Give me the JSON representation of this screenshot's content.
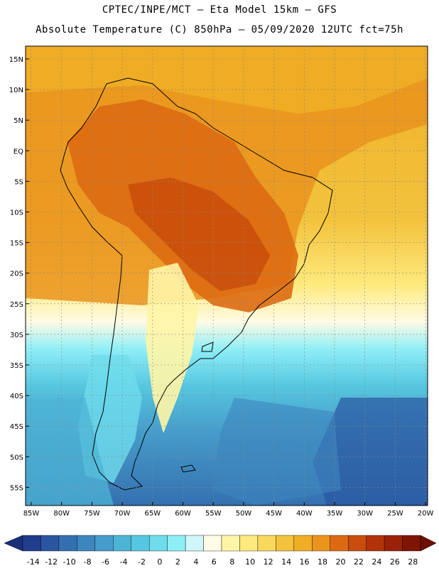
{
  "header": {
    "line1": "CPTEC/INPE/MCT –  Eta Model 15km – GFS",
    "line2": "Absolute Temperature (C) 850hPa – 05/09/2020 12UTC fct=75h"
  },
  "map": {
    "lat_labels": [
      "15N",
      "10N",
      "5N",
      "EQ",
      "5S",
      "10S",
      "15S",
      "20S",
      "25S",
      "30S",
      "35S",
      "40S",
      "45S",
      "50S",
      "55S"
    ],
    "lon_labels": [
      "85W",
      "80W",
      "75W",
      "70W",
      "65W",
      "60W",
      "55W",
      "50W",
      "45W",
      "40W",
      "35W",
      "30W",
      "25W",
      "20W"
    ]
  },
  "colorbar": {
    "ticks": [
      "-14",
      "-12",
      "-10",
      "-8",
      "-6",
      "-4",
      "-2",
      "0",
      "2",
      "4",
      "6",
      "8",
      "10",
      "12",
      "14",
      "16",
      "18",
      "20",
      "22",
      "24",
      "26",
      "28"
    ],
    "colors": [
      "#1f3d8c",
      "#2a56a0",
      "#3470b0",
      "#3d86be",
      "#469cca",
      "#4db4d6",
      "#56c7e0",
      "#6fdcec",
      "#8eeef6",
      "#cff6fb",
      "#fffbe6",
      "#fff5a6",
      "#feea7e",
      "#f9d85e",
      "#f3c33d",
      "#efae25",
      "#ea931d",
      "#dd6a12",
      "#c94d0c",
      "#b23308",
      "#9a2206",
      "#7f1505"
    ],
    "under_color": "#1a2f7a",
    "over_color": "#6e0f04"
  }
}
